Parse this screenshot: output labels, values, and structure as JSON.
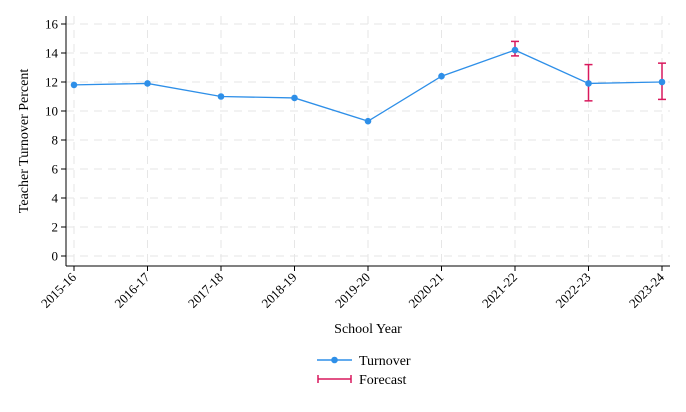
{
  "chart_data": {
    "type": "line",
    "title": "",
    "xlabel": "School Year",
    "ylabel": "Teacher Turnover Percent",
    "categories": [
      "2015-16",
      "2016-17",
      "2017-18",
      "2018-19",
      "2019-20",
      "2020-21",
      "2021-22",
      "2022-23",
      "2023-24"
    ],
    "ylim": [
      0,
      16
    ],
    "yticks": [
      0,
      2,
      4,
      6,
      8,
      10,
      12,
      14,
      16
    ],
    "grid": true,
    "legend_position": "bottom-center",
    "series": [
      {
        "name": "Turnover",
        "type": "line",
        "color": "#2e8fe8",
        "values": [
          11.8,
          11.9,
          11.0,
          10.9,
          9.3,
          12.4,
          14.2,
          11.9,
          12.0
        ]
      },
      {
        "name": "Forecast",
        "type": "errorbar",
        "color": "#d9195d",
        "points": [
          {
            "category": "2021-22",
            "low": 13.8,
            "high": 14.8
          },
          {
            "category": "2022-23",
            "low": 10.7,
            "high": 13.2
          },
          {
            "category": "2023-24",
            "low": 10.8,
            "high": 13.3
          }
        ]
      }
    ]
  }
}
